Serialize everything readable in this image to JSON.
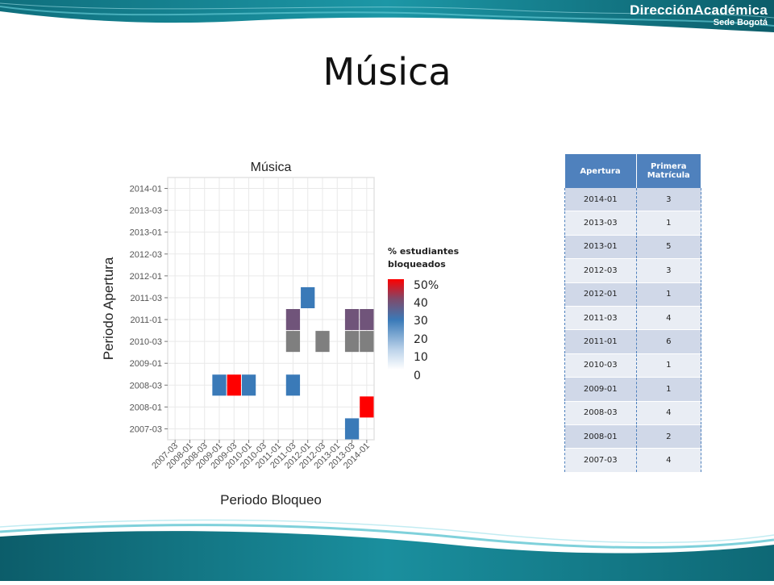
{
  "slide": {
    "title": "Música"
  },
  "brand": {
    "main": "DirecciónAcadémica",
    "sub": "Sede Bogotá"
  },
  "chart_data": {
    "type": "heatmap",
    "title": "Música",
    "xlabel": "Periodo Bloqueo",
    "ylabel": "Periodo Apertura",
    "x_categories": [
      "2007-03",
      "2008-01",
      "2008-03",
      "2009-01",
      "2009-03",
      "2010-01",
      "2010-03",
      "2011-01",
      "2011-03",
      "2012-01",
      "2012-03",
      "2013-01",
      "2013-03",
      "2014-01"
    ],
    "y_categories": [
      "2007-03",
      "2008-01",
      "2008-03",
      "2009-01",
      "2010-03",
      "2011-01",
      "2011-03",
      "2012-01",
      "2012-03",
      "2013-01",
      "2013-03",
      "2014-01"
    ],
    "grid": true,
    "legend": {
      "title": "% estudiantes bloqueados",
      "labels": [
        "50%",
        "40",
        "30",
        "20",
        "10",
        "0"
      ],
      "range": [
        0,
        50
      ]
    },
    "cells": [
      {
        "x": "2009-01",
        "y": "2008-03",
        "value": 25
      },
      {
        "x": "2009-03",
        "y": "2008-03",
        "value": 50
      },
      {
        "x": "2010-01",
        "y": "2008-03",
        "value": 25
      },
      {
        "x": "2011-03",
        "y": "2008-03",
        "value": 25
      },
      {
        "x": "2011-03",
        "y": "2010-03",
        "value": null
      },
      {
        "x": "2012-03",
        "y": "2010-03",
        "value": null
      },
      {
        "x": "2013-03",
        "y": "2010-03",
        "value": null
      },
      {
        "x": "2014-01",
        "y": "2010-03",
        "value": null
      },
      {
        "x": "2011-03",
        "y": "2011-01",
        "value": 33
      },
      {
        "x": "2013-03",
        "y": "2011-01",
        "value": 33
      },
      {
        "x": "2014-01",
        "y": "2011-01",
        "value": 33
      },
      {
        "x": "2012-01",
        "y": "2011-03",
        "value": 25
      },
      {
        "x": "2013-03",
        "y": "2007-03",
        "value": 25
      },
      {
        "x": "2014-01",
        "y": "2008-01",
        "value": 50
      }
    ]
  },
  "table": {
    "headers": [
      "Apertura",
      "Primera Matrícula"
    ],
    "rows": [
      [
        "2014-01",
        "3"
      ],
      [
        "2013-03",
        "1"
      ],
      [
        "2013-01",
        "5"
      ],
      [
        "2012-03",
        "3"
      ],
      [
        "2012-01",
        "1"
      ],
      [
        "2011-03",
        "4"
      ],
      [
        "2011-01",
        "6"
      ],
      [
        "2010-03",
        "1"
      ],
      [
        "2009-01",
        "1"
      ],
      [
        "2008-03",
        "4"
      ],
      [
        "2008-01",
        "2"
      ],
      [
        "2007-03",
        "4"
      ]
    ]
  },
  "colors": {
    "accent": "#4f81bd",
    "teal": "#1e8a96",
    "na": "#7f7f7f",
    "high": "#ff0000",
    "low": "#ffffff"
  }
}
